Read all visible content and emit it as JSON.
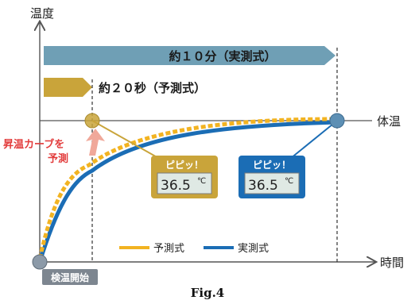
{
  "axes": {
    "y_label": "温度",
    "x_label": "時間",
    "body_temp_label": "体温"
  },
  "bars": {
    "actual_label": "約１０分（実測式）",
    "predictive_label": "約２０秒（予測式）"
  },
  "callout": {
    "line1": "昇温カーブを",
    "line2": "予測"
  },
  "thermometers": {
    "predictive": {
      "beep": "ピピッ！",
      "reading": "36.5",
      "unit": "℃"
    },
    "actual": {
      "beep": "ピピッ！",
      "reading": "36.5",
      "unit": "℃"
    }
  },
  "legend": {
    "predictive": "予測式",
    "actual": "実測式"
  },
  "start_label": "検温開始",
  "caption": "Fig.4",
  "colors": {
    "actual_blue": "#1b6db5",
    "predictive_gold": "#f2b321",
    "gold_box": "#c9a43a",
    "bar_blue": "#6f9fb5",
    "bar_gold": "#c9a43a",
    "callout_red": "#e23b3b",
    "arrow_pink": "#f0a89a"
  }
}
